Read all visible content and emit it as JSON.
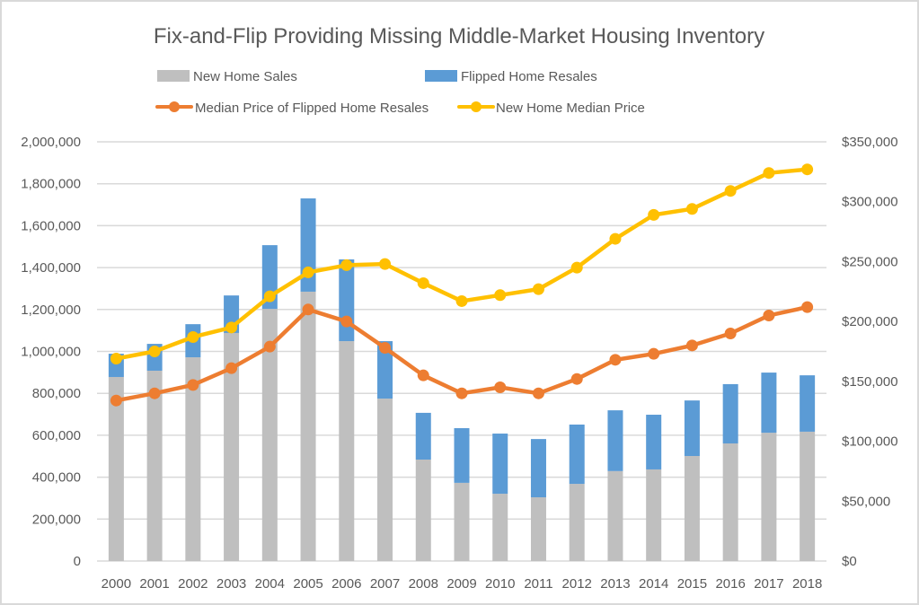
{
  "chart_data": {
    "type": "bar",
    "subtype": "stacked bar + line (dual axis)",
    "title": "Fix-and-Flip Providing Missing Middle-Market Housing Inventory",
    "xlabel": "",
    "ylabel": "",
    "y2label": "",
    "categories": [
      "2000",
      "2001",
      "2002",
      "2003",
      "2004",
      "2005",
      "2006",
      "2007",
      "2008",
      "2009",
      "2010",
      "2011",
      "2012",
      "2013",
      "2014",
      "2015",
      "2016",
      "2017",
      "2018"
    ],
    "ylim": [
      0,
      2000000
    ],
    "y_ticks": [
      0,
      200000,
      400000,
      600000,
      800000,
      1000000,
      1200000,
      1400000,
      1600000,
      1800000,
      2000000
    ],
    "y_tick_labels": [
      "0",
      "200,000",
      "400,000",
      "600,000",
      "800,000",
      "1,000,000",
      "1,200,000",
      "1,400,000",
      "1,600,000",
      "1,800,000",
      "2,000,000"
    ],
    "y2lim": [
      0,
      350000
    ],
    "y2_ticks": [
      0,
      50000,
      100000,
      150000,
      200000,
      250000,
      300000,
      350000
    ],
    "y2_tick_labels": [
      "$0",
      "$50,000",
      "$100,000",
      "$150,000",
      "$200,000",
      "$250,000",
      "$300,000",
      "$350,000"
    ],
    "grid": true,
    "legend_position": "top",
    "series": [
      {
        "name": "New Home Sales",
        "kind": "bar",
        "axis": "left",
        "stack": "homes",
        "color": "#BFBFBF",
        "values": [
          878000,
          908000,
          972000,
          1088000,
          1203000,
          1285000,
          1049000,
          775000,
          484000,
          373000,
          321000,
          304000,
          368000,
          429000,
          437000,
          501000,
          561000,
          612000,
          617000
        ]
      },
      {
        "name": "Flipped Home Resales",
        "kind": "bar",
        "axis": "left",
        "stack": "homes",
        "color": "#5B9BD5",
        "values": [
          111000,
          128000,
          158000,
          179000,
          304000,
          445000,
          390000,
          274000,
          223000,
          261000,
          287000,
          278000,
          283000,
          290000,
          261000,
          265000,
          283000,
          287000,
          269000
        ]
      },
      {
        "name": "Median Price of Flipped Home Resales",
        "kind": "line",
        "axis": "right",
        "color": "#ED7D31",
        "values": [
          134000,
          140000,
          147000,
          161000,
          179000,
          210000,
          200000,
          178000,
          155000,
          140000,
          145000,
          140000,
          152000,
          168000,
          173000,
          180000,
          190000,
          205000,
          212000
        ]
      },
      {
        "name": "New Home Median Price",
        "kind": "line",
        "axis": "right",
        "color": "#FFC000",
        "values": [
          169000,
          175000,
          187000,
          195000,
          221000,
          241000,
          247000,
          248000,
          232000,
          217000,
          222000,
          227000,
          245000,
          269000,
          289000,
          294000,
          309000,
          324000,
          327000
        ]
      }
    ],
    "legend": [
      {
        "label": "New Home Sales",
        "swatch": "bar",
        "color": "#BFBFBF"
      },
      {
        "label": "Flipped Home Resales",
        "swatch": "bar",
        "color": "#5B9BD5"
      },
      {
        "label": "Median Price of Flipped Home Resales",
        "swatch": "line-marker",
        "color": "#ED7D31"
      },
      {
        "label": "New Home Median Price",
        "swatch": "line-marker",
        "color": "#FFC000"
      }
    ]
  }
}
